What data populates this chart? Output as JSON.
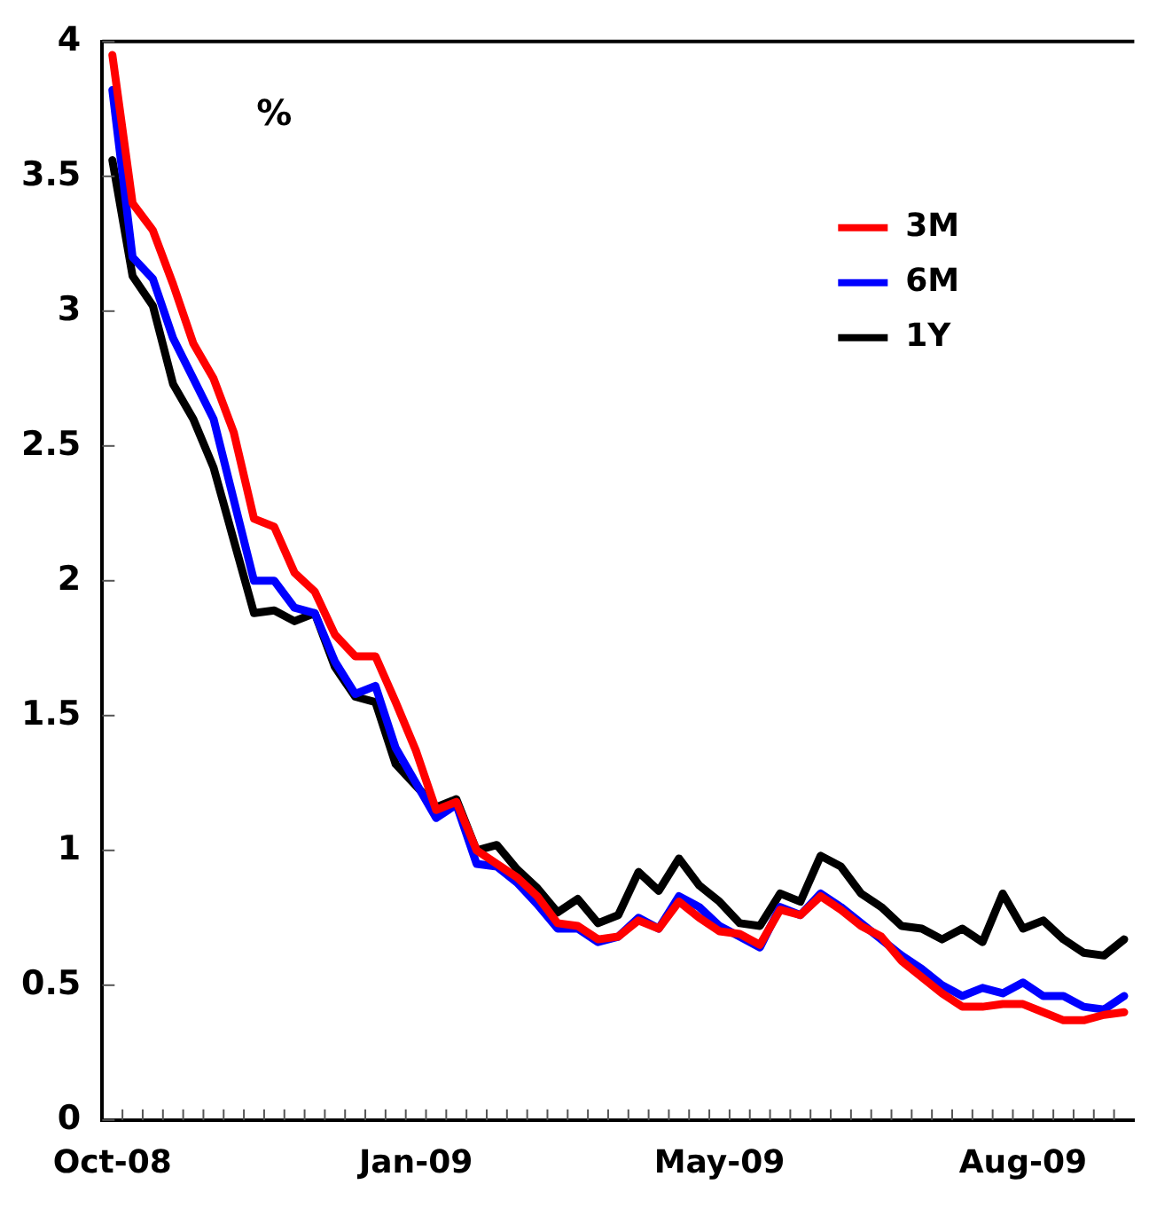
{
  "chart_data": {
    "type": "line",
    "ylabel": "%",
    "categories": [
      "Oct-08",
      null,
      null,
      null,
      null,
      null,
      null,
      null,
      null,
      null,
      null,
      null,
      null,
      null,
      null,
      "Jan-09",
      null,
      null,
      null,
      null,
      null,
      null,
      null,
      null,
      null,
      null,
      null,
      null,
      null,
      null,
      "May-09",
      null,
      null,
      null,
      null,
      null,
      null,
      null,
      null,
      null,
      null,
      null,
      null,
      null,
      null,
      "Aug-09",
      null,
      null,
      null,
      null,
      null
    ],
    "series": [
      {
        "name": "3M",
        "color": "#ff0000",
        "values": [
          3.95,
          3.4,
          3.3,
          3.1,
          2.88,
          2.75,
          2.55,
          2.23,
          2.2,
          2.03,
          1.96,
          1.8,
          1.72,
          1.72,
          1.55,
          1.37,
          1.15,
          1.18,
          1.0,
          0.95,
          0.9,
          0.83,
          0.73,
          0.72,
          0.67,
          0.68,
          0.74,
          0.71,
          0.81,
          0.75,
          0.7,
          0.69,
          0.65,
          0.78,
          0.76,
          0.83,
          0.78,
          0.72,
          0.68,
          0.59,
          0.53,
          0.47,
          0.42,
          0.42,
          0.43,
          0.43,
          0.4,
          0.37,
          0.37,
          0.39,
          0.4
        ]
      },
      {
        "name": "6M",
        "color": "#0000ff",
        "values": [
          3.82,
          3.2,
          3.12,
          2.9,
          2.75,
          2.6,
          2.3,
          2.0,
          2.0,
          1.9,
          1.88,
          1.7,
          1.58,
          1.61,
          1.38,
          1.25,
          1.12,
          1.17,
          0.95,
          0.94,
          0.88,
          0.8,
          0.71,
          0.71,
          0.66,
          0.68,
          0.75,
          0.71,
          0.83,
          0.79,
          0.72,
          0.68,
          0.64,
          0.79,
          0.76,
          0.84,
          0.79,
          0.73,
          0.67,
          0.61,
          0.56,
          0.5,
          0.46,
          0.49,
          0.47,
          0.51,
          0.46,
          0.46,
          0.42,
          0.41,
          0.46
        ]
      },
      {
        "name": "1Y",
        "color": "#000000",
        "values": [
          3.56,
          3.13,
          3.02,
          2.73,
          2.6,
          2.42,
          2.15,
          1.88,
          1.89,
          1.85,
          1.88,
          1.68,
          1.57,
          1.55,
          1.32,
          1.24,
          1.16,
          1.19,
          1.0,
          1.02,
          0.93,
          0.86,
          0.77,
          0.82,
          0.73,
          0.76,
          0.92,
          0.85,
          0.97,
          0.87,
          0.81,
          0.73,
          0.72,
          0.84,
          0.81,
          0.98,
          0.94,
          0.84,
          0.79,
          0.72,
          0.71,
          0.67,
          0.71,
          0.66,
          0.84,
          0.71,
          0.74,
          0.67,
          0.62,
          0.61,
          0.67
        ]
      }
    ],
    "ylim": [
      0,
      4
    ],
    "yticks": [
      0,
      0.5,
      1,
      1.5,
      2,
      2.5,
      3,
      3.5,
      4
    ],
    "grid": false,
    "legend": "top right",
    "marker": "none",
    "line_style": "solid"
  }
}
